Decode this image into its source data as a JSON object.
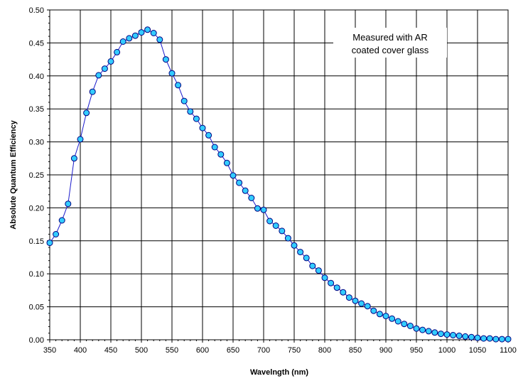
{
  "chart_data": {
    "type": "line",
    "xlabel": "Wavelngth (nm)",
    "ylabel": "Absolute Quantum Efficiency",
    "xlim": [
      350,
      1100
    ],
    "ylim": [
      0,
      0.5
    ],
    "x_ticks": [
      350,
      400,
      450,
      500,
      550,
      600,
      650,
      700,
      750,
      800,
      850,
      900,
      950,
      1000,
      1050,
      1100
    ],
    "y_ticks": [
      "0.00",
      "0.05",
      "0.10",
      "0.15",
      "0.20",
      "0.25",
      "0.30",
      "0.35",
      "0.40",
      "0.45",
      "0.50"
    ],
    "grid": true,
    "annotation": {
      "lines": [
        "Measured with AR",
        "coated cover glass"
      ]
    },
    "colors": {
      "line": "#1a1acc",
      "marker_fill": "#33ccff",
      "marker_stroke": "#000080",
      "grid": "#000000"
    },
    "series": [
      {
        "x": [
          350,
          360,
          370,
          380,
          390,
          400,
          410,
          420,
          430,
          440,
          450,
          460,
          470,
          480,
          490,
          500,
          510,
          520,
          530,
          540,
          550,
          560,
          570,
          580,
          590,
          600,
          610,
          620,
          630,
          640,
          650,
          660,
          670,
          680,
          690,
          700,
          710,
          720,
          730,
          740,
          750,
          760,
          770,
          780,
          790,
          800,
          810,
          820,
          830,
          840,
          850,
          860,
          870,
          880,
          890,
          900,
          910,
          920,
          930,
          940,
          950,
          960,
          970,
          980,
          990,
          1000,
          1010,
          1020,
          1030,
          1040,
          1050,
          1060,
          1070,
          1080,
          1090,
          1100
        ],
        "values": [
          0.147,
          0.16,
          0.181,
          0.206,
          0.275,
          0.304,
          0.344,
          0.376,
          0.401,
          0.411,
          0.422,
          0.436,
          0.452,
          0.457,
          0.461,
          0.466,
          0.47,
          0.465,
          0.455,
          0.425,
          0.404,
          0.386,
          0.362,
          0.346,
          0.335,
          0.321,
          0.31,
          0.292,
          0.281,
          0.268,
          0.249,
          0.238,
          0.226,
          0.215,
          0.199,
          0.197,
          0.18,
          0.173,
          0.165,
          0.154,
          0.143,
          0.133,
          0.124,
          0.112,
          0.105,
          0.094,
          0.086,
          0.079,
          0.072,
          0.064,
          0.059,
          0.055,
          0.051,
          0.044,
          0.039,
          0.036,
          0.032,
          0.028,
          0.024,
          0.021,
          0.017,
          0.015,
          0.013,
          0.011,
          0.009,
          0.008,
          0.007,
          0.006,
          0.005,
          0.004,
          0.003,
          0.002,
          0.002,
          0.001,
          0.001,
          0.001
        ]
      }
    ]
  }
}
